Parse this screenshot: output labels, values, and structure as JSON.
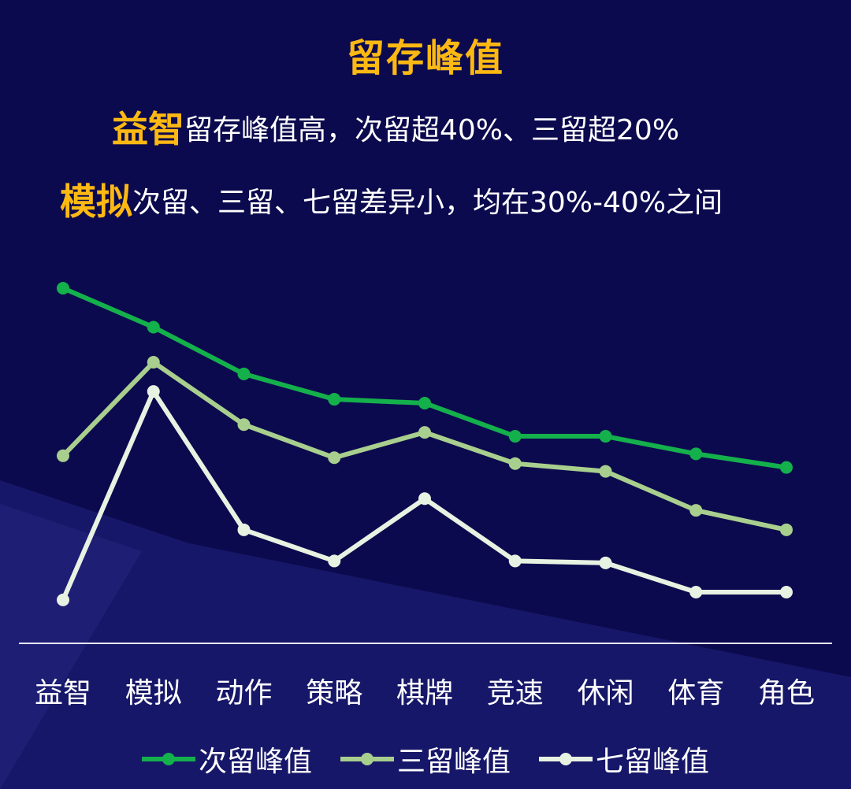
{
  "header": {
    "title": "留存峰值",
    "line1_highlight": "益智",
    "line1_text": "留存峰值高，次留超40%、三留超20%",
    "line2_highlight": "模拟",
    "line2_text": "次留、三留、七留差异小，均在30%-40%之间"
  },
  "colors": {
    "background": "#0c0a4e",
    "title": "#fdb913",
    "series": [
      "#14b04c",
      "#a9cf8e",
      "#e8f2e2"
    ]
  },
  "chart_data": {
    "type": "line",
    "title": "留存峰值",
    "categories": [
      "益智",
      "模拟",
      "动作",
      "策略",
      "棋牌",
      "竞速",
      "休闲",
      "体育",
      "角色"
    ],
    "ylim": [
      0,
      100
    ],
    "grid": false,
    "legend_position": "bottom",
    "series": [
      {
        "name": "次留峰值",
        "values": [
          90,
          80,
          68,
          61.5,
          60.5,
          52,
          52,
          47.5,
          44
        ]
      },
      {
        "name": "三留峰值",
        "values": [
          47,
          71,
          55,
          46.5,
          53,
          45,
          43,
          33,
          28
        ]
      },
      {
        "name": "七留峰值",
        "values": [
          10,
          63.5,
          28,
          20,
          36,
          20,
          19.5,
          12,
          12
        ]
      }
    ]
  }
}
